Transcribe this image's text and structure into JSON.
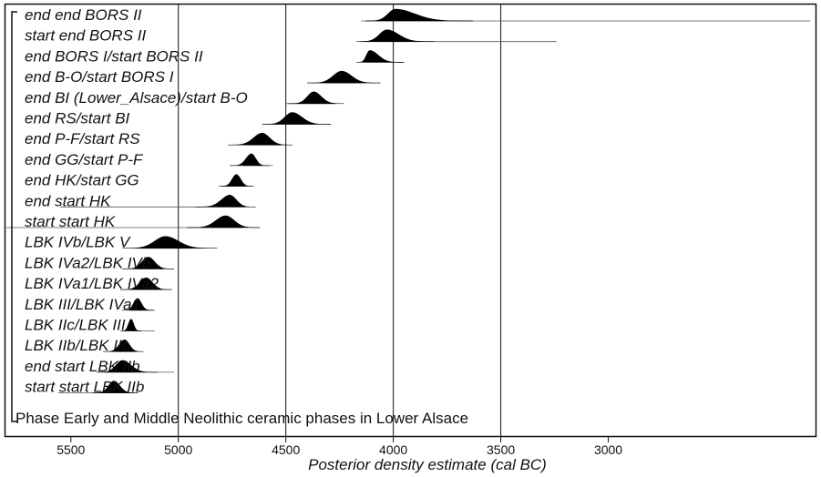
{
  "chart_data": {
    "type": "area",
    "xlabel": "Posterior density estimate (cal BC)",
    "x_axis_reversed": true,
    "xlim": [
      5800,
      2040
    ],
    "x_ticks": [
      5500,
      5000,
      4500,
      4000,
      3500,
      3000
    ],
    "vertical_gridlines": [
      5000,
      4500,
      4000,
      3500
    ],
    "phase_label": "Phase Early and Middle Neolithic ceramic phases in Lower Alsace",
    "series": [
      {
        "name": "end end BORS II",
        "peak": 3990,
        "sd_left": 35,
        "sd_right": 90,
        "line_range": [
          4150,
          2060
        ]
      },
      {
        "name": "start end BORS II",
        "peak": 4030,
        "sd_left": 35,
        "sd_right": 55,
        "line_range": [
          4150,
          3240
        ]
      },
      {
        "name": "end BORS I/start BORS II",
        "peak": 4110,
        "sd_left": 15,
        "sd_right": 40,
        "line_range": [
          4140,
          3950
        ]
      },
      {
        "name": "end B-O/start BORS I",
        "peak": 4240,
        "sd_left": 40,
        "sd_right": 45,
        "line_range": [
          4330,
          4150
        ]
      },
      {
        "name": "end BI (Lower_Alsace)/start B-O",
        "peak": 4370,
        "sd_left": 30,
        "sd_right": 35,
        "line_range": [
          4500,
          4270
        ]
      },
      {
        "name": "end RS/start BI",
        "peak": 4470,
        "sd_left": 35,
        "sd_right": 45,
        "line_range": [
          4570,
          4360
        ]
      },
      {
        "name": "end P-F/start RS",
        "peak": 4610,
        "sd_left": 40,
        "sd_right": 35,
        "line_range": [
          4690,
          4520
        ]
      },
      {
        "name": "end GG/start P-F",
        "peak": 4660,
        "sd_left": 25,
        "sd_right": 20,
        "line_range": [
          4700,
          4560
        ]
      },
      {
        "name": "end HK/start GG",
        "peak": 4730,
        "sd_left": 20,
        "sd_right": 20,
        "line_range": [
          4800,
          4690
        ]
      },
      {
        "name": "end start HK",
        "peak": 4760,
        "sd_left": 40,
        "sd_right": 30,
        "line_range": [
          5550,
          4690
        ]
      },
      {
        "name": "start start HK",
        "peak": 4780,
        "sd_left": 45,
        "sd_right": 40,
        "line_range": [
          5800,
          4700
        ]
      },
      {
        "name": "LBK IVb/LBK V",
        "peak": 5060,
        "sd_left": 50,
        "sd_right": 60,
        "line_range": [
          5180,
          4940
        ]
      },
      {
        "name": "LBK IVa2/LBK IVb",
        "peak": 5140,
        "sd_left": 30,
        "sd_right": 30,
        "line_range": [
          5200,
          5070
        ]
      },
      {
        "name": "LBK IVa1/LBK IVa2",
        "peak": 5150,
        "sd_left": 30,
        "sd_right": 30,
        "line_range": [
          5210,
          5080
        ]
      },
      {
        "name": "LBK III/LBK IVa1",
        "peak": 5190,
        "sd_left": 18,
        "sd_right": 18,
        "line_range": [
          5220,
          5110
        ]
      },
      {
        "name": "LBK IIc/LBK III",
        "peak": 5220,
        "sd_left": 12,
        "sd_right": 12,
        "line_range": [
          5260,
          5110
        ]
      },
      {
        "name": "LBK IIb/LBK IIc",
        "peak": 5250,
        "sd_left": 25,
        "sd_right": 22,
        "line_range": [
          5290,
          5200
        ]
      },
      {
        "name": "end start LBK IIb",
        "peak": 5260,
        "sd_left": 30,
        "sd_right": 40,
        "line_range": [
          5360,
          5020
        ]
      },
      {
        "name": "start start LBK IIb",
        "peak": 5300,
        "sd_left": 25,
        "sd_right": 28,
        "line_range": [
          5560,
          5210
        ]
      }
    ]
  }
}
